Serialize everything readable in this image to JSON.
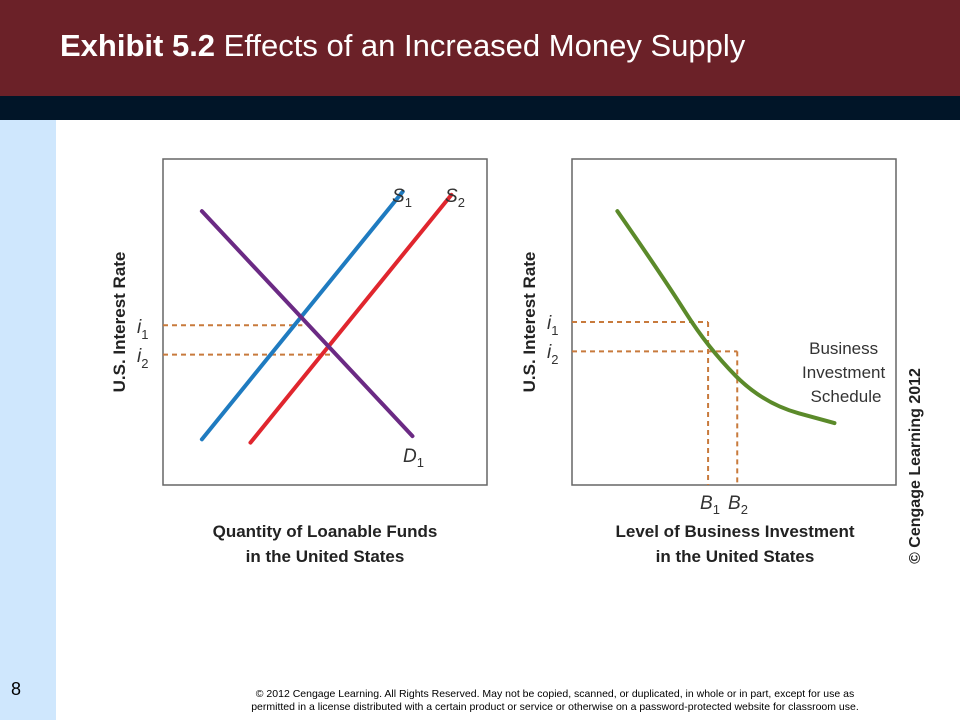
{
  "header": {
    "title_bold": "Exhibit 5.2",
    "title_rest": " Effects of an Increased Money Supply"
  },
  "slide_number": "8",
  "footer": {
    "line1": "© 2012 Cengage Learning. All Rights Reserved. May not be copied, scanned, or duplicated, in whole or in part, except for use as",
    "line2": "permitted in a license distributed with a certain product or service or otherwise on a password-protected website for classroom use."
  },
  "copyright_vertical": "© Cengage Learning 2012",
  "colors": {
    "title_bar": "#6b2128",
    "dark_band": "#011528",
    "left_strip": "#cfe7fd",
    "supply_1": "#1f7bc0",
    "supply_2": "#e0262e",
    "demand": "#6b2a84",
    "investment": "#5b8a2a",
    "guides": "#c87a3c"
  },
  "chart_data": [
    {
      "type": "line",
      "title": "",
      "ylabel": "U.S. Interest Rate",
      "xlabel_line1": "Quantity of Loanable Funds",
      "xlabel_line2": "in the United States",
      "y_ticks": [
        {
          "symbol": "i",
          "sub": "1"
        },
        {
          "symbol": "i",
          "sub": "2"
        }
      ],
      "series": [
        {
          "name": "S1",
          "symbol": "S",
          "sub": "1",
          "points": [
            [
              0.12,
              0.14
            ],
            [
              0.74,
              0.9
            ]
          ]
        },
        {
          "name": "S2",
          "symbol": "S",
          "sub": "2",
          "points": [
            [
              0.27,
              0.13
            ],
            [
              0.89,
              0.89
            ]
          ]
        },
        {
          "name": "D1",
          "symbol": "D",
          "sub": "1",
          "points": [
            [
              0.12,
              0.84
            ],
            [
              0.77,
              0.15
            ]
          ]
        }
      ],
      "equilibria": [
        {
          "label": "i1",
          "x": 0.43,
          "y": 0.49
        },
        {
          "label": "i2",
          "x": 0.52,
          "y": 0.4
        }
      ]
    },
    {
      "type": "line",
      "title": "",
      "ylabel": "U.S. Interest Rate",
      "xlabel_line1": "Level of Business Investment",
      "xlabel_line2": "in the United States",
      "y_ticks": [
        {
          "symbol": "i",
          "sub": "1"
        },
        {
          "symbol": "i",
          "sub": "2"
        }
      ],
      "x_ticks": [
        {
          "symbol": "B",
          "sub": "1"
        },
        {
          "symbol": "B",
          "sub": "2"
        }
      ],
      "series": [
        {
          "name": "Business Investment Schedule",
          "label_lines": [
            "Business",
            "Investment",
            "Schedule"
          ],
          "points": [
            [
              0.14,
              0.84
            ],
            [
              0.28,
              0.64
            ],
            [
              0.42,
              0.42
            ],
            [
              0.59,
              0.25
            ],
            [
              0.81,
              0.19
            ]
          ]
        }
      ],
      "points_marked": [
        {
          "label": "i1-B1",
          "x": 0.42,
          "y": 0.5
        },
        {
          "label": "i2-B2",
          "x": 0.51,
          "y": 0.41
        }
      ]
    }
  ]
}
